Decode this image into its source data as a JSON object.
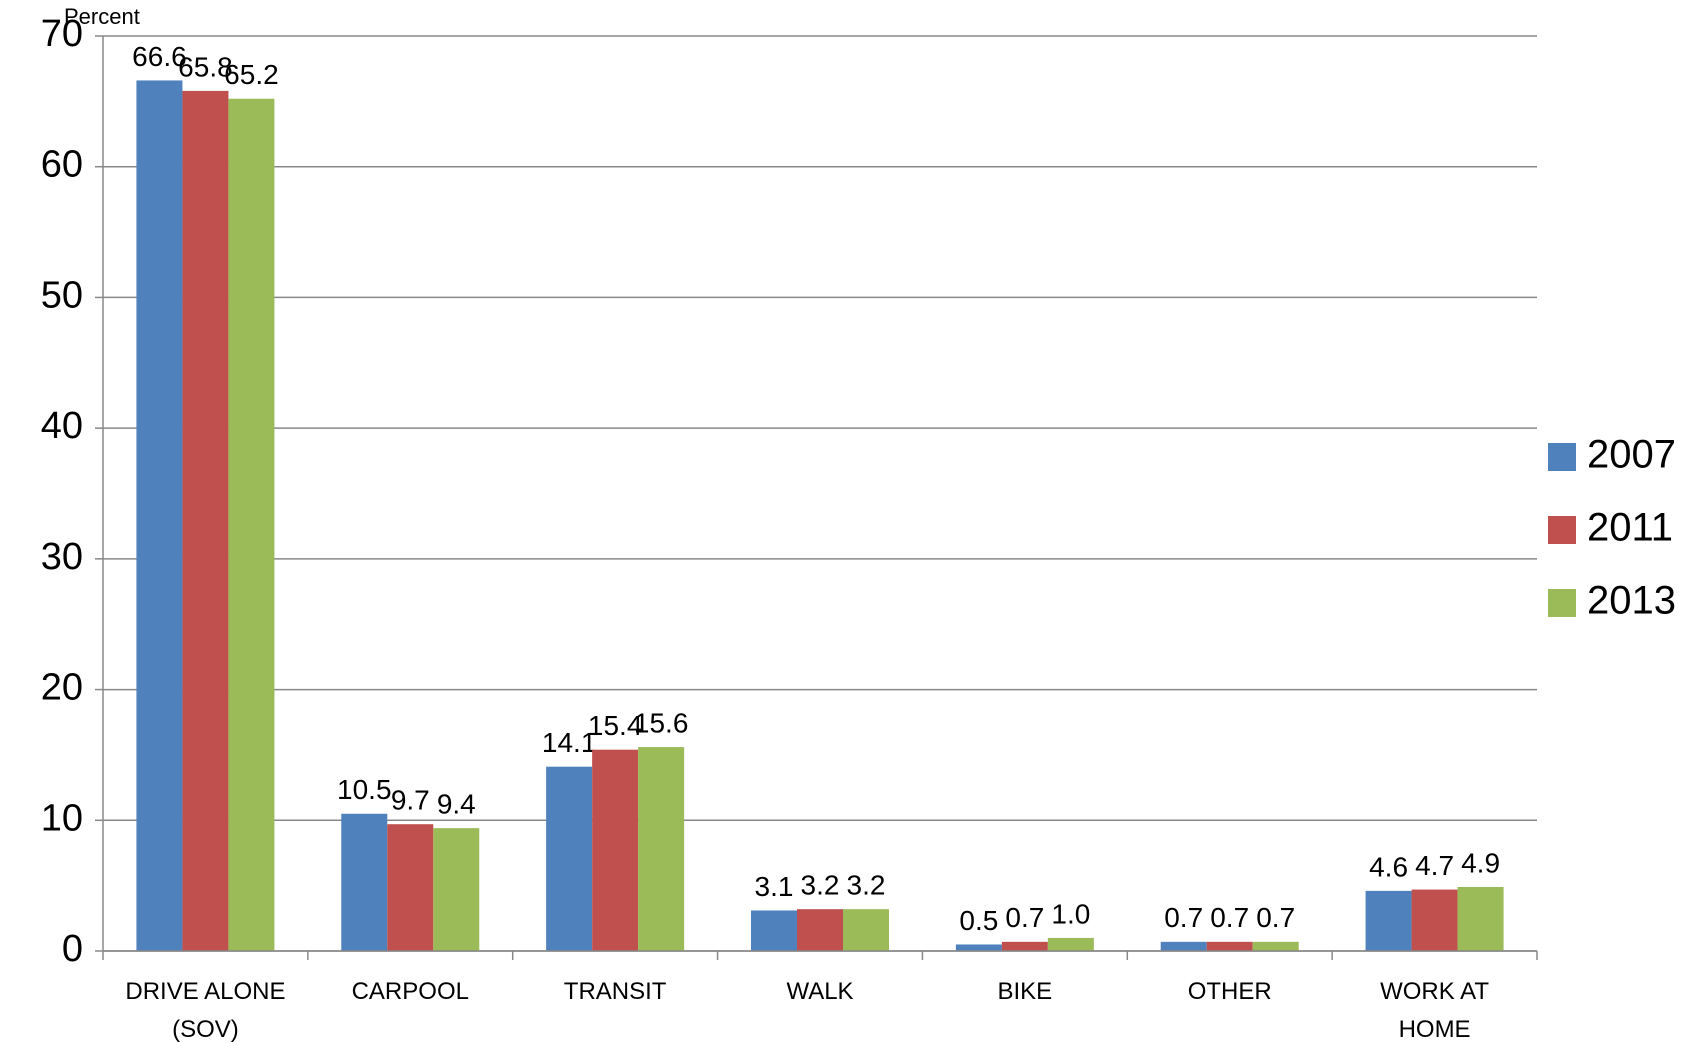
{
  "chart_data": {
    "type": "bar",
    "y_axis_label": "Percent",
    "categories": [
      "DRIVE ALONE (SOV)",
      "CARPOOL",
      "TRANSIT",
      "WALK",
      "BIKE",
      "OTHER",
      "WORK AT HOME"
    ],
    "series": [
      {
        "name": "2007",
        "color": "#4f81bd",
        "values": [
          66.6,
          10.5,
          14.1,
          3.1,
          0.5,
          0.7,
          4.6
        ],
        "value_labels": [
          "66.6",
          "10.5",
          "14.1",
          "3.1",
          "0.5",
          "0.7",
          "4.6"
        ]
      },
      {
        "name": "2011",
        "color": "#c0504d",
        "values": [
          65.8,
          9.7,
          15.4,
          3.2,
          0.7,
          0.7,
          4.7
        ],
        "value_labels": [
          "65.8",
          "9.7",
          "15.4",
          "3.2",
          "0.7",
          "0.7",
          "4.7"
        ]
      },
      {
        "name": "2013",
        "color": "#9bbb59",
        "values": [
          65.2,
          9.4,
          15.6,
          3.2,
          1,
          0.7,
          4.9
        ],
        "value_labels": [
          "65.2",
          "9.4",
          "15.6",
          "3.2",
          "1.0",
          "0.7",
          "4.9"
        ]
      }
    ],
    "ylim": [
      0,
      70
    ],
    "yticks": [
      0,
      10,
      20,
      30,
      40,
      50,
      60,
      70
    ],
    "grid": true,
    "legend": "right"
  }
}
